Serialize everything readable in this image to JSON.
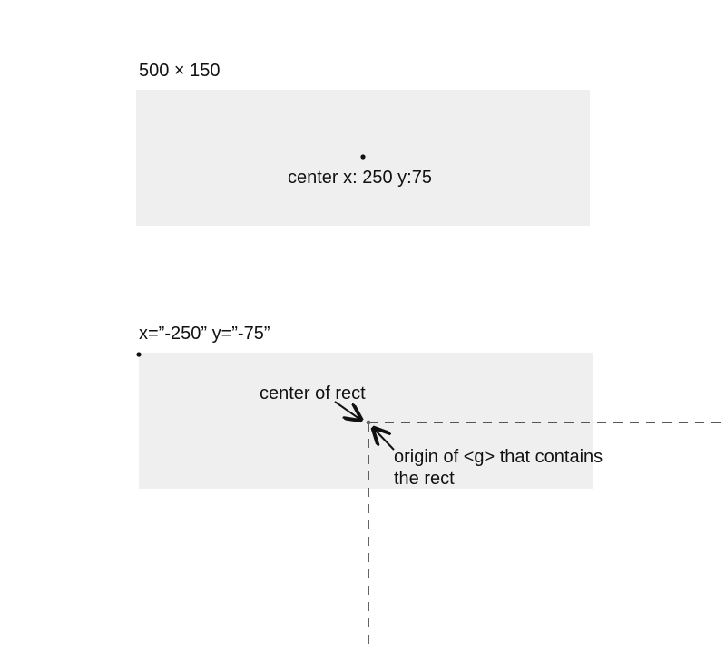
{
  "diagram": {
    "top_panel": {
      "size_label": "500 × 150",
      "center_label": "center x: 250 y:75"
    },
    "bottom_panel": {
      "offset_label": "x=”-250” y=”-75”",
      "center_of_rect_label": "center of rect",
      "origin_label_line1": "origin of <g> that contains",
      "origin_label_line2": "the rect"
    },
    "colors": {
      "panel_fill": "#efefef",
      "text": "#111111",
      "dot": "#111111",
      "guide": "#222222",
      "origin_dot": "#666666"
    }
  }
}
